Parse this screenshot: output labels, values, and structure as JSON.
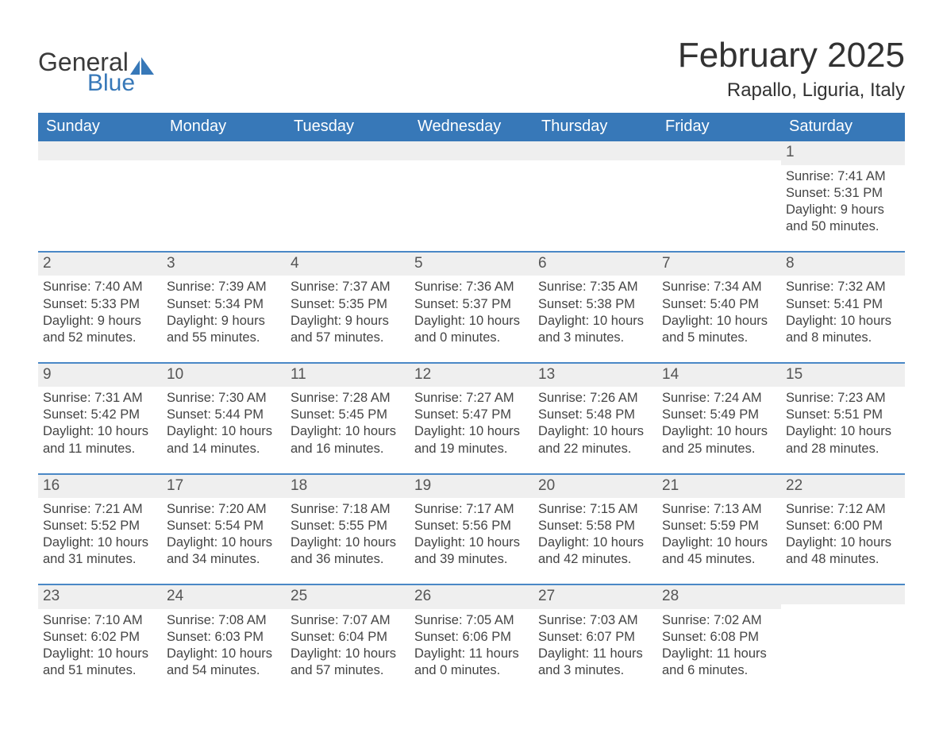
{
  "brand": {
    "word1": "General",
    "word2": "Blue"
  },
  "title": "February 2025",
  "location": "Rapallo, Liguria, Italy",
  "colors": {
    "brand_blue": "#3778b8",
    "divider_blue": "#4a88c6",
    "row_gray": "#efefef",
    "text_dark": "#333333",
    "page_bg": "#ffffff"
  },
  "day_names": [
    "Sunday",
    "Monday",
    "Tuesday",
    "Wednesday",
    "Thursday",
    "Friday",
    "Saturday"
  ],
  "labels": {
    "sunrise": "Sunrise:",
    "sunset": "Sunset:",
    "daylight": "Daylight:"
  },
  "weeks": [
    [
      null,
      null,
      null,
      null,
      null,
      null,
      {
        "n": "1",
        "sunrise": "7:41 AM",
        "sunset": "5:31 PM",
        "dl1": "9 hours",
        "dl2": "and 50 minutes."
      }
    ],
    [
      {
        "n": "2",
        "sunrise": "7:40 AM",
        "sunset": "5:33 PM",
        "dl1": "9 hours",
        "dl2": "and 52 minutes."
      },
      {
        "n": "3",
        "sunrise": "7:39 AM",
        "sunset": "5:34 PM",
        "dl1": "9 hours",
        "dl2": "and 55 minutes."
      },
      {
        "n": "4",
        "sunrise": "7:37 AM",
        "sunset": "5:35 PM",
        "dl1": "9 hours",
        "dl2": "and 57 minutes."
      },
      {
        "n": "5",
        "sunrise": "7:36 AM",
        "sunset": "5:37 PM",
        "dl1": "10 hours",
        "dl2": "and 0 minutes."
      },
      {
        "n": "6",
        "sunrise": "7:35 AM",
        "sunset": "5:38 PM",
        "dl1": "10 hours",
        "dl2": "and 3 minutes."
      },
      {
        "n": "7",
        "sunrise": "7:34 AM",
        "sunset": "5:40 PM",
        "dl1": "10 hours",
        "dl2": "and 5 minutes."
      },
      {
        "n": "8",
        "sunrise": "7:32 AM",
        "sunset": "5:41 PM",
        "dl1": "10 hours",
        "dl2": "and 8 minutes."
      }
    ],
    [
      {
        "n": "9",
        "sunrise": "7:31 AM",
        "sunset": "5:42 PM",
        "dl1": "10 hours",
        "dl2": "and 11 minutes."
      },
      {
        "n": "10",
        "sunrise": "7:30 AM",
        "sunset": "5:44 PM",
        "dl1": "10 hours",
        "dl2": "and 14 minutes."
      },
      {
        "n": "11",
        "sunrise": "7:28 AM",
        "sunset": "5:45 PM",
        "dl1": "10 hours",
        "dl2": "and 16 minutes."
      },
      {
        "n": "12",
        "sunrise": "7:27 AM",
        "sunset": "5:47 PM",
        "dl1": "10 hours",
        "dl2": "and 19 minutes."
      },
      {
        "n": "13",
        "sunrise": "7:26 AM",
        "sunset": "5:48 PM",
        "dl1": "10 hours",
        "dl2": "and 22 minutes."
      },
      {
        "n": "14",
        "sunrise": "7:24 AM",
        "sunset": "5:49 PM",
        "dl1": "10 hours",
        "dl2": "and 25 minutes."
      },
      {
        "n": "15",
        "sunrise": "7:23 AM",
        "sunset": "5:51 PM",
        "dl1": "10 hours",
        "dl2": "and 28 minutes."
      }
    ],
    [
      {
        "n": "16",
        "sunrise": "7:21 AM",
        "sunset": "5:52 PM",
        "dl1": "10 hours",
        "dl2": "and 31 minutes."
      },
      {
        "n": "17",
        "sunrise": "7:20 AM",
        "sunset": "5:54 PM",
        "dl1": "10 hours",
        "dl2": "and 34 minutes."
      },
      {
        "n": "18",
        "sunrise": "7:18 AM",
        "sunset": "5:55 PM",
        "dl1": "10 hours",
        "dl2": "and 36 minutes."
      },
      {
        "n": "19",
        "sunrise": "7:17 AM",
        "sunset": "5:56 PM",
        "dl1": "10 hours",
        "dl2": "and 39 minutes."
      },
      {
        "n": "20",
        "sunrise": "7:15 AM",
        "sunset": "5:58 PM",
        "dl1": "10 hours",
        "dl2": "and 42 minutes."
      },
      {
        "n": "21",
        "sunrise": "7:13 AM",
        "sunset": "5:59 PM",
        "dl1": "10 hours",
        "dl2": "and 45 minutes."
      },
      {
        "n": "22",
        "sunrise": "7:12 AM",
        "sunset": "6:00 PM",
        "dl1": "10 hours",
        "dl2": "and 48 minutes."
      }
    ],
    [
      {
        "n": "23",
        "sunrise": "7:10 AM",
        "sunset": "6:02 PM",
        "dl1": "10 hours",
        "dl2": "and 51 minutes."
      },
      {
        "n": "24",
        "sunrise": "7:08 AM",
        "sunset": "6:03 PM",
        "dl1": "10 hours",
        "dl2": "and 54 minutes."
      },
      {
        "n": "25",
        "sunrise": "7:07 AM",
        "sunset": "6:04 PM",
        "dl1": "10 hours",
        "dl2": "and 57 minutes."
      },
      {
        "n": "26",
        "sunrise": "7:05 AM",
        "sunset": "6:06 PM",
        "dl1": "11 hours",
        "dl2": "and 0 minutes."
      },
      {
        "n": "27",
        "sunrise": "7:03 AM",
        "sunset": "6:07 PM",
        "dl1": "11 hours",
        "dl2": "and 3 minutes."
      },
      {
        "n": "28",
        "sunrise": "7:02 AM",
        "sunset": "6:08 PM",
        "dl1": "11 hours",
        "dl2": "and 6 minutes."
      },
      null
    ]
  ]
}
